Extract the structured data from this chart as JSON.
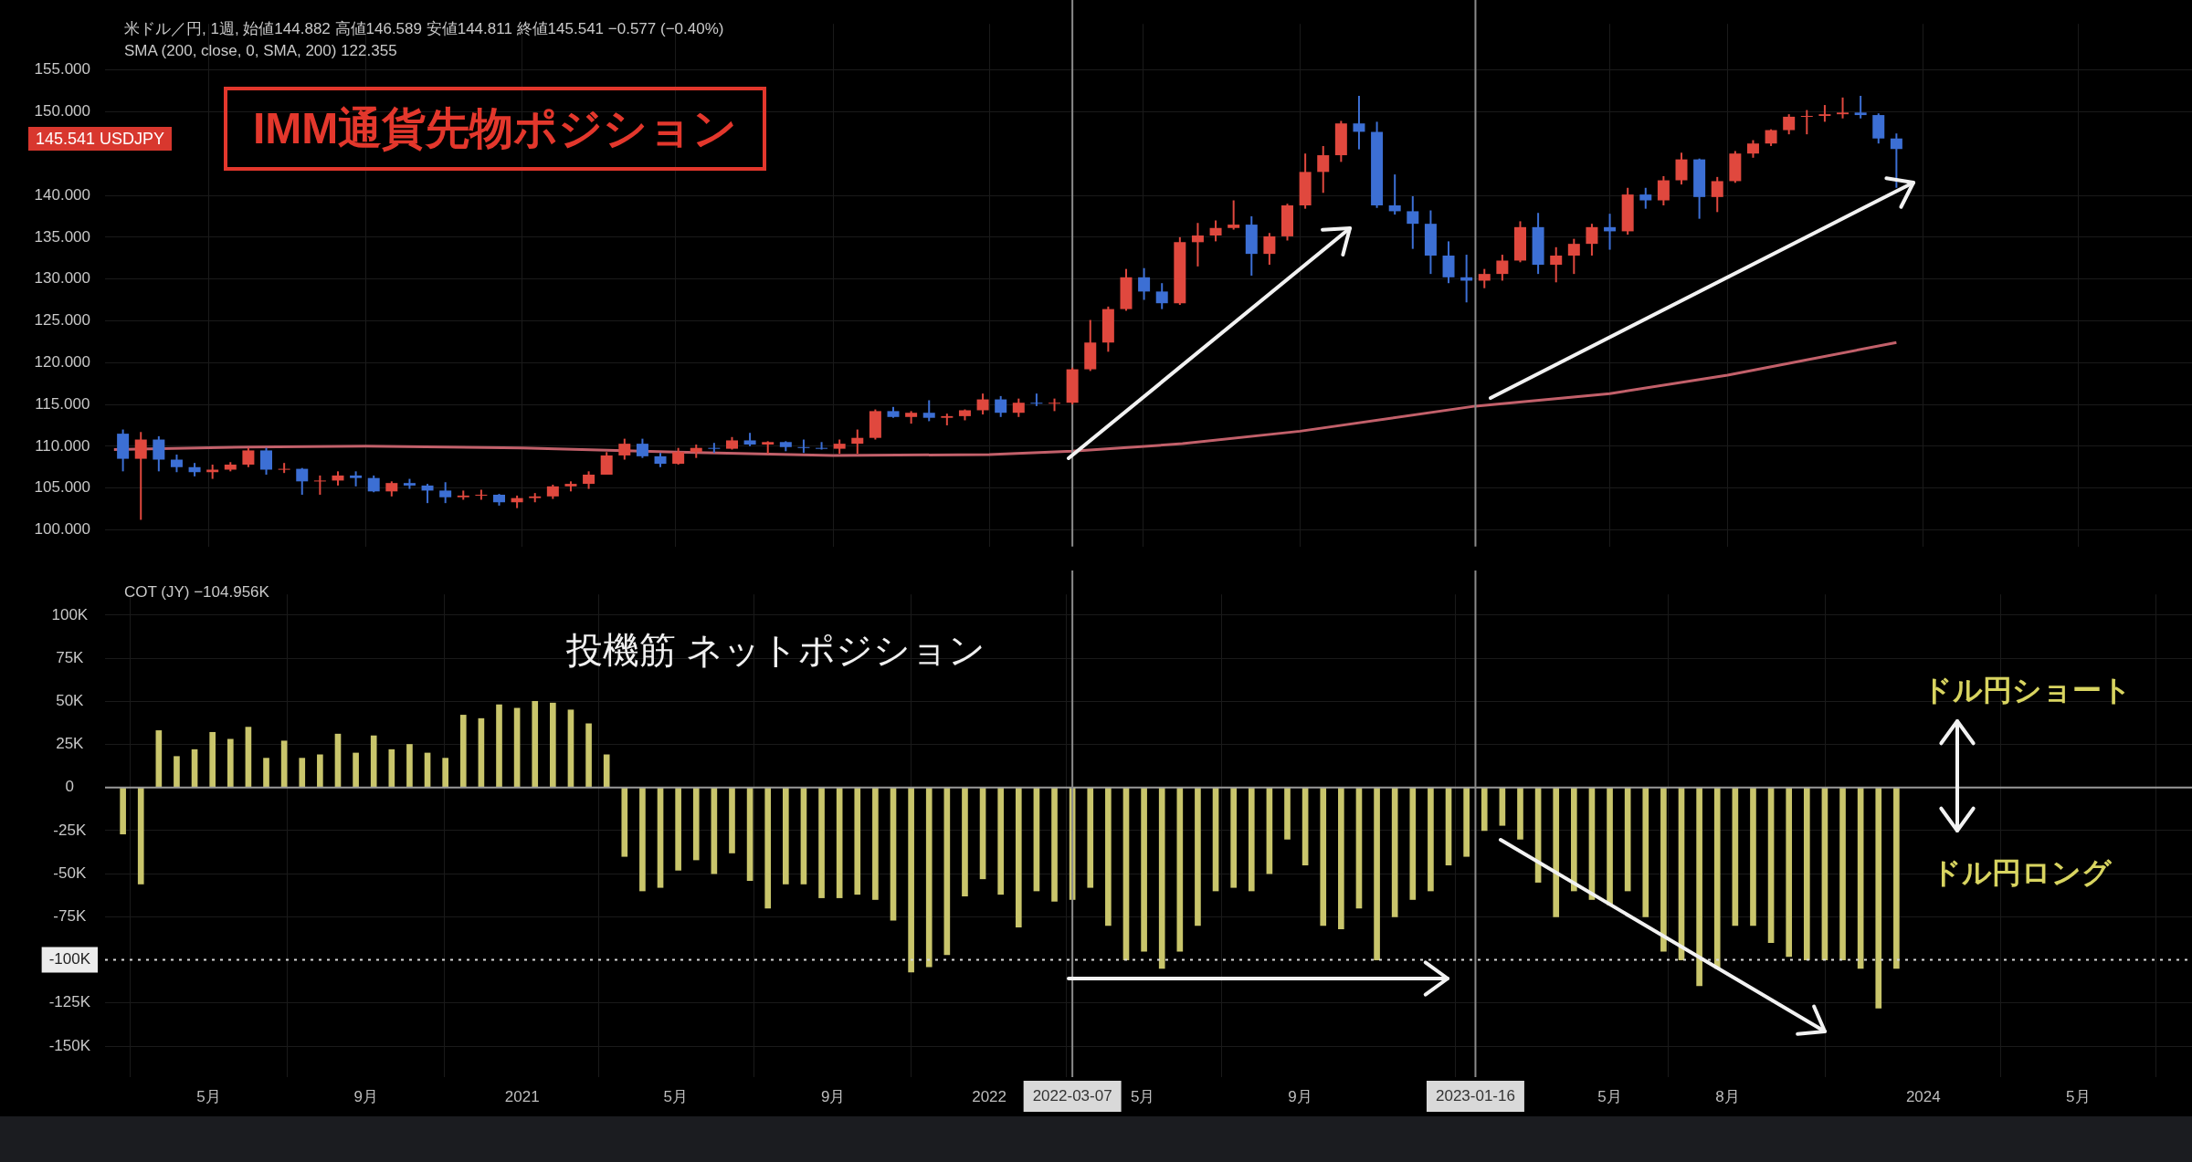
{
  "chart_data": [
    {
      "type": "candlestick",
      "title": "IMM通貨先物ポジション",
      "x": [
        "2020-02-24",
        "2020-03-09",
        "2020-03-23",
        "2020-04-06",
        "2020-04-20",
        "2020-05-04",
        "2020-05-18",
        "2020-06-01",
        "2020-06-15",
        "2020-06-29",
        "2020-07-13",
        "2020-07-27",
        "2020-08-10",
        "2020-08-24",
        "2020-09-07",
        "2020-09-21",
        "2020-10-05",
        "2020-10-19",
        "2020-11-02",
        "2020-11-16",
        "2020-11-30",
        "2020-12-14",
        "2020-12-28",
        "2021-01-11",
        "2021-01-25",
        "2021-02-08",
        "2021-02-22",
        "2021-03-08",
        "2021-03-22",
        "2021-04-05",
        "2021-04-19",
        "2021-05-03",
        "2021-05-17",
        "2021-05-31",
        "2021-06-14",
        "2021-06-28",
        "2021-07-12",
        "2021-07-26",
        "2021-08-09",
        "2021-08-23",
        "2021-09-06",
        "2021-09-20",
        "2021-10-04",
        "2021-10-18",
        "2021-11-01",
        "2021-11-15",
        "2021-11-29",
        "2021-12-13",
        "2021-12-27",
        "2022-01-10",
        "2022-01-24",
        "2022-02-07",
        "2022-02-21",
        "2022-03-07",
        "2022-03-21",
        "2022-04-04",
        "2022-04-18",
        "2022-05-02",
        "2022-05-16",
        "2022-05-30",
        "2022-06-13",
        "2022-06-27",
        "2022-07-11",
        "2022-07-25",
        "2022-08-08",
        "2022-08-22",
        "2022-09-05",
        "2022-09-19",
        "2022-10-03",
        "2022-10-17",
        "2022-10-31",
        "2022-11-14",
        "2022-11-28",
        "2022-12-12",
        "2022-12-26",
        "2023-01-09",
        "2023-01-23",
        "2023-02-06",
        "2023-02-20",
        "2023-03-06",
        "2023-03-20",
        "2023-04-03",
        "2023-04-17",
        "2023-05-01",
        "2023-05-15",
        "2023-05-29",
        "2023-06-12",
        "2023-06-26",
        "2023-07-10",
        "2023-07-24",
        "2023-08-07",
        "2023-08-21",
        "2023-09-04",
        "2023-09-18",
        "2023-10-02",
        "2023-10-16",
        "2023-10-30",
        "2023-11-13",
        "2023-11-27",
        "2023-12-11"
      ],
      "ohlc": [
        [
          111.5,
          112,
          107,
          108.5
        ],
        [
          108.5,
          111.7,
          101.2,
          110.8
        ],
        [
          110.8,
          111.2,
          107,
          108.4
        ],
        [
          108.4,
          109,
          106.9,
          107.5
        ],
        [
          107.5,
          108,
          106.4,
          106.9
        ],
        [
          106.9,
          107.8,
          106.1,
          107.2
        ],
        [
          107.2,
          108.1,
          107,
          107.8
        ],
        [
          107.8,
          109.8,
          107.5,
          109.5
        ],
        [
          109.5,
          109.8,
          106.6,
          107.2
        ],
        [
          107.2,
          108,
          106.8,
          107.3
        ],
        [
          107.3,
          107.4,
          104.2,
          105.8
        ],
        [
          105.8,
          106.5,
          104.2,
          105.9
        ],
        [
          105.9,
          107,
          105.3,
          106.5
        ],
        [
          106.5,
          107,
          105.2,
          106.2
        ],
        [
          106.2,
          106.5,
          104.5,
          104.6
        ],
        [
          104.6,
          105.8,
          104,
          105.6
        ],
        [
          105.6,
          106.1,
          104.9,
          105.3
        ],
        [
          105.3,
          105.5,
          103.2,
          104.7
        ],
        [
          104.7,
          105.7,
          103.2,
          103.9
        ],
        [
          103.9,
          104.7,
          103.6,
          104.1
        ],
        [
          104.1,
          104.8,
          103.6,
          104.2
        ],
        [
          104.2,
          104.3,
          102.9,
          103.3
        ],
        [
          103.3,
          104.1,
          102.6,
          103.8
        ],
        [
          103.8,
          104.4,
          103.3,
          104
        ],
        [
          104,
          105.4,
          103.7,
          105.2
        ],
        [
          105.2,
          105.8,
          104.6,
          105.5
        ],
        [
          105.5,
          107,
          104.9,
          106.6
        ],
        [
          106.6,
          109.3,
          106.6,
          108.9
        ],
        [
          108.9,
          110.9,
          108.4,
          110.3
        ],
        [
          110.3,
          110.9,
          108.6,
          108.8
        ],
        [
          108.8,
          109.2,
          107.5,
          107.9
        ],
        [
          107.9,
          109.8,
          107.8,
          109.3
        ],
        [
          109.3,
          110.2,
          108.6,
          109.8
        ],
        [
          109.8,
          110.4,
          109.2,
          109.7
        ],
        [
          109.7,
          111.1,
          109.6,
          110.7
        ],
        [
          110.7,
          111.6,
          110,
          110.2
        ],
        [
          110.2,
          110.6,
          109.1,
          110.5
        ],
        [
          110.5,
          110.6,
          109.4,
          109.9
        ],
        [
          109.9,
          110.8,
          109.2,
          109.8
        ],
        [
          109.8,
          110.5,
          109.6,
          109.7
        ],
        [
          109.7,
          110.8,
          109.1,
          110.3
        ],
        [
          110.3,
          112,
          109.1,
          111
        ],
        [
          111,
          114.4,
          110.8,
          114.2
        ],
        [
          114.2,
          114.7,
          113.4,
          113.5
        ],
        [
          113.5,
          114.2,
          112.7,
          114
        ],
        [
          114,
          115.5,
          113,
          113.4
        ],
        [
          113.4,
          113.9,
          112.5,
          113.6
        ],
        [
          113.6,
          114.4,
          113.1,
          114.3
        ],
        [
          114.3,
          116.3,
          113.8,
          115.6
        ],
        [
          115.6,
          116,
          113.5,
          114
        ],
        [
          114,
          115.7,
          113.5,
          115.2
        ],
        [
          115.2,
          116.3,
          114.8,
          115.1
        ],
        [
          115.1,
          115.7,
          114.2,
          115.2
        ],
        [
          115.2,
          119.4,
          115,
          119.2
        ],
        [
          119.2,
          125.1,
          119,
          122.4
        ],
        [
          122.4,
          126.7,
          121.3,
          126.4
        ],
        [
          126.4,
          131.2,
          126.2,
          130.2
        ],
        [
          130.2,
          131.3,
          127.5,
          128.5
        ],
        [
          128.5,
          129.5,
          126.4,
          127.1
        ],
        [
          127.1,
          135,
          126.9,
          134.4
        ],
        [
          134.4,
          136.7,
          131.5,
          135.2
        ],
        [
          135.2,
          137,
          134.5,
          136.1
        ],
        [
          136.1,
          139.4,
          135.9,
          136.5
        ],
        [
          136.5,
          137.5,
          130.4,
          133
        ],
        [
          133,
          135.5,
          131.7,
          135.1
        ],
        [
          135.1,
          139,
          134.6,
          138.8
        ],
        [
          138.8,
          145,
          138.4,
          142.8
        ],
        [
          142.8,
          145.9,
          140.3,
          144.8
        ],
        [
          144.8,
          148.9,
          144,
          148.6
        ],
        [
          148.6,
          151.9,
          145.5,
          147.6
        ],
        [
          147.6,
          148.8,
          138.5,
          138.8
        ],
        [
          138.8,
          142.5,
          137.7,
          138.1
        ],
        [
          138.1,
          139.9,
          133.6,
          136.6
        ],
        [
          136.6,
          138.2,
          130.6,
          132.8
        ],
        [
          132.8,
          134.5,
          129.5,
          130.2
        ],
        [
          130.2,
          132.9,
          127.2,
          129.8
        ],
        [
          129.8,
          131.2,
          128.9,
          130.6
        ],
        [
          130.6,
          132.9,
          129.8,
          132.2
        ],
        [
          132.2,
          136.9,
          132,
          136.2
        ],
        [
          136.2,
          137.9,
          130.6,
          131.7
        ],
        [
          131.7,
          133.8,
          129.6,
          132.8
        ],
        [
          132.8,
          134.8,
          130.6,
          134.2
        ],
        [
          134.2,
          136.6,
          132.8,
          136.2
        ],
        [
          136.2,
          137.8,
          133.5,
          135.7
        ],
        [
          135.7,
          140.9,
          135.3,
          140.1
        ],
        [
          140.1,
          140.9,
          138.4,
          139.4
        ],
        [
          139.4,
          142.3,
          138.8,
          141.8
        ],
        [
          141.8,
          145.1,
          141.3,
          144.3
        ],
        [
          144.3,
          144.4,
          137.2,
          139.8
        ],
        [
          139.8,
          142.2,
          138,
          141.7
        ],
        [
          141.7,
          145.3,
          141.5,
          145
        ],
        [
          145,
          146.6,
          144.5,
          146.2
        ],
        [
          146.2,
          147.9,
          145.9,
          147.8
        ],
        [
          147.8,
          149.7,
          147.3,
          149.4
        ],
        [
          149.4,
          150.2,
          147.3,
          149.5
        ],
        [
          149.5,
          150.8,
          148.8,
          149.7
        ],
        [
          149.7,
          151.7,
          149.2,
          149.9
        ],
        [
          149.9,
          151.9,
          149.2,
          149.6
        ],
        [
          149.6,
          149.8,
          146.2,
          146.8
        ],
        [
          146.8,
          147.4,
          140.9,
          145.541
        ]
      ],
      "colors": [
        "#3c6fd4",
        "#e0483e",
        "#3c6fd4",
        "#3c6fd4",
        "#3c6fd4",
        "#e0483e",
        "#e0483e",
        "#e0483e",
        "#3c6fd4",
        "#e0483e",
        "#3c6fd4",
        "#e0483e",
        "#e0483e",
        "#3c6fd4",
        "#3c6fd4",
        "#e0483e",
        "#3c6fd4",
        "#3c6fd4",
        "#3c6fd4",
        "#e0483e",
        "#e0483e",
        "#3c6fd4",
        "#e0483e",
        "#e0483e",
        "#e0483e",
        "#e0483e",
        "#e0483e",
        "#e0483e",
        "#e0483e",
        "#3c6fd4",
        "#3c6fd4",
        "#e0483e",
        "#e0483e",
        "#3c6fd4",
        "#e0483e",
        "#3c6fd4",
        "#e0483e",
        "#3c6fd4",
        "#3c6fd4",
        "#3c6fd4",
        "#e0483e",
        "#e0483e",
        "#e0483e",
        "#3c6fd4",
        "#e0483e",
        "#3c6fd4",
        "#e0483e",
        "#e0483e",
        "#e0483e",
        "#3c6fd4",
        "#e0483e",
        "#3c6fd4",
        "#e0483e",
        "#e0483e",
        "#e0483e",
        "#e0483e",
        "#e0483e",
        "#3c6fd4",
        "#3c6fd4",
        "#e0483e",
        "#e0483e",
        "#e0483e",
        "#e0483e",
        "#3c6fd4",
        "#e0483e",
        "#e0483e",
        "#e0483e",
        "#e0483e",
        "#e0483e",
        "#3c6fd4",
        "#3c6fd4",
        "#3c6fd4",
        "#3c6fd4",
        "#3c6fd4",
        "#3c6fd4",
        "#3c6fd4",
        "#e0483e",
        "#e0483e",
        "#e0483e",
        "#3c6fd4",
        "#e0483e",
        "#e0483e",
        "#e0483e",
        "#3c6fd4",
        "#e0483e",
        "#3c6fd4",
        "#e0483e",
        "#e0483e",
        "#3c6fd4",
        "#e0483e",
        "#e0483e",
        "#e0483e",
        "#e0483e",
        "#e0483e",
        "#e0483e",
        "#e0483e",
        "#e0483e",
        "#3c6fd4",
        "#3c6fd4",
        "#3c6fd4"
      ],
      "series": [
        {
          "type": "line",
          "color": "#c2606a",
          "x": [
            "2020-02-17",
            "2020-06-01",
            "2020-09-01",
            "2021-01-01",
            "2021-05-01",
            "2021-09-01",
            "2022-01-01",
            "2022-03-07",
            "2022-06-01",
            "2022-09-01",
            "2023-01-16",
            "2023-05-01",
            "2023-08-01",
            "2023-10-01",
            "2023-12-11"
          ],
          "values": [
            109.6,
            109.9,
            110,
            109.8,
            109.3,
            108.9,
            109,
            109.4,
            110.3,
            111.8,
            114.8,
            116.3,
            118.5,
            120.3,
            122.4
          ]
        }
      ],
      "xlim": [
        "2020-02-10",
        "2024-07-29"
      ],
      "xticks": [
        {
          "value": "2020-05-01",
          "label": null
        },
        {
          "value": "2020-09-01",
          "label": null
        },
        {
          "value": "2021-01-01",
          "label": null
        },
        {
          "value": "2021-05-01",
          "label": null
        },
        {
          "value": "2021-09-01",
          "label": null
        },
        {
          "value": "2022-01-01",
          "label": null
        },
        {
          "value": "2022-05-01",
          "label": null
        },
        {
          "value": "2022-09-01",
          "label": null
        },
        {
          "value": "2023-05-01",
          "label": null
        },
        {
          "value": "2023-08-01",
          "label": null
        },
        {
          "value": "2024-01-01",
          "label": null
        },
        {
          "value": "2024-05-01",
          "label": null
        }
      ],
      "ylim": [
        98,
        160.5
      ],
      "yticks": [
        {
          "value": 100,
          "label": "100.000"
        },
        {
          "value": 105,
          "label": "105.000"
        },
        {
          "value": 110,
          "label": "110.000"
        },
        {
          "value": 115,
          "label": "115.000"
        },
        {
          "value": 120,
          "label": "120.000"
        },
        {
          "value": 125,
          "label": "125.000"
        },
        {
          "value": 130,
          "label": "130.000"
        },
        {
          "value": 135,
          "label": "135.000"
        },
        {
          "value": 140,
          "label": "140.000"
        },
        {
          "value": 150,
          "label": "150.000"
        },
        {
          "value": 155,
          "label": "155.000"
        }
      ],
      "tick_labels": "y",
      "grid": true,
      "ref_lines": [
        {
          "axis": "x",
          "value": "2022-03-07"
        },
        {
          "axis": "x",
          "value": "2023-01-16"
        }
      ],
      "annotations": [
        "米ドル／円, 1週, 始値144.882 高値146.589 安値144.811 終値145.541 −0.577 (−0.40%)",
        "SMA (200, close, 0, SMA, 200) 122.355",
        "145.541 USDJPY"
      ]
    },
    {
      "type": "bar",
      "title": "投機筋 ネットポジション",
      "color": "#c9c56b",
      "x": [
        "2020-02-24",
        "2020-03-09",
        "2020-03-23",
        "2020-04-06",
        "2020-04-20",
        "2020-05-04",
        "2020-05-18",
        "2020-06-01",
        "2020-06-15",
        "2020-06-29",
        "2020-07-13",
        "2020-07-27",
        "2020-08-10",
        "2020-08-24",
        "2020-09-07",
        "2020-09-21",
        "2020-10-05",
        "2020-10-19",
        "2020-11-02",
        "2020-11-16",
        "2020-11-30",
        "2020-12-14",
        "2020-12-28",
        "2021-01-11",
        "2021-01-25",
        "2021-02-08",
        "2021-02-22",
        "2021-03-08",
        "2021-03-22",
        "2021-04-05",
        "2021-04-19",
        "2021-05-03",
        "2021-05-17",
        "2021-05-31",
        "2021-06-14",
        "2021-06-28",
        "2021-07-12",
        "2021-07-26",
        "2021-08-09",
        "2021-08-23",
        "2021-09-06",
        "2021-09-20",
        "2021-10-04",
        "2021-10-18",
        "2021-11-01",
        "2021-11-15",
        "2021-11-29",
        "2021-12-13",
        "2021-12-27",
        "2022-01-10",
        "2022-01-24",
        "2022-02-07",
        "2022-02-21",
        "2022-03-07",
        "2022-03-21",
        "2022-04-04",
        "2022-04-18",
        "2022-05-02",
        "2022-05-16",
        "2022-05-30",
        "2022-06-13",
        "2022-06-27",
        "2022-07-11",
        "2022-07-25",
        "2022-08-08",
        "2022-08-22",
        "2022-09-05",
        "2022-09-19",
        "2022-10-03",
        "2022-10-17",
        "2022-10-31",
        "2022-11-14",
        "2022-11-28",
        "2022-12-12",
        "2022-12-26",
        "2023-01-09",
        "2023-01-23",
        "2023-02-06",
        "2023-02-20",
        "2023-03-06",
        "2023-03-20",
        "2023-04-03",
        "2023-04-17",
        "2023-05-01",
        "2023-05-15",
        "2023-05-29",
        "2023-06-12",
        "2023-06-26",
        "2023-07-10",
        "2023-07-24",
        "2023-08-07",
        "2023-08-21",
        "2023-09-04",
        "2023-09-18",
        "2023-10-02",
        "2023-10-16",
        "2023-10-30",
        "2023-11-13",
        "2023-11-27",
        "2023-12-11"
      ],
      "values": [
        -27,
        -56,
        33,
        18,
        22,
        32,
        28,
        35,
        17,
        27,
        17,
        19,
        31,
        20,
        30,
        22,
        25,
        20,
        17,
        42,
        40,
        48,
        46,
        50,
        49,
        45,
        37,
        19,
        -40,
        -60,
        -58,
        -48,
        -42,
        -50,
        -38,
        -54,
        -70,
        -56,
        -56,
        -64,
        -64,
        -62,
        -65,
        -77,
        -107,
        -104,
        -97,
        -63,
        -53,
        -62,
        -81,
        -60,
        -66,
        -65,
        -58,
        -80,
        -100,
        -95,
        -105,
        -95,
        -80,
        -60,
        -58,
        -60,
        -50,
        -30,
        -45,
        -80,
        -82,
        -70,
        -100,
        -75,
        -65,
        -60,
        -45,
        -40,
        -25,
        -22,
        -30,
        -55,
        -75,
        -60,
        -65,
        -68,
        -60,
        -75,
        -95,
        -100,
        -115,
        -105,
        -80,
        -80,
        -90,
        -98,
        -100,
        -100,
        -100,
        -105,
        -128,
        -105
      ],
      "xlim": [
        "2020-02-10",
        "2024-07-29"
      ],
      "xticks": [
        {
          "value": "2020-05-01",
          "label": "5月"
        },
        {
          "value": "2020-09-01",
          "label": "9月"
        },
        {
          "value": "2021-01-01",
          "label": "2021"
        },
        {
          "value": "2021-05-01",
          "label": "5月"
        },
        {
          "value": "2021-09-01",
          "label": "9月"
        },
        {
          "value": "2022-01-01",
          "label": "2022"
        },
        {
          "value": "2022-05-01",
          "label": "5月"
        },
        {
          "value": "2022-09-01",
          "label": "9月"
        },
        {
          "value": "2023-05-01",
          "label": "5月"
        },
        {
          "value": "2023-08-01",
          "label": "8月"
        },
        {
          "value": "2024-01-01",
          "label": "2024"
        },
        {
          "value": "2024-05-01",
          "label": "5月"
        }
      ],
      "ylim": [
        -168,
        112
      ],
      "yticks": [
        {
          "value": -150,
          "label": "-150K"
        },
        {
          "value": -125,
          "label": "-125K"
        },
        {
          "value": -75,
          "label": "-75K"
        },
        {
          "value": -50,
          "label": "-50K"
        },
        {
          "value": -25,
          "label": "-25K"
        },
        {
          "value": 0,
          "label": "0"
        },
        {
          "value": 25,
          "label": "25K"
        },
        {
          "value": 50,
          "label": "50K"
        },
        {
          "value": 75,
          "label": "75K"
        },
        {
          "value": 100,
          "label": "100K"
        }
      ],
      "grid": true,
      "ref_lines": [
        {
          "axis": "y",
          "value": 0,
          "color": "#9a9a9a"
        },
        {
          "axis": "y",
          "value": -100,
          "label": "-100K",
          "line_style": "dotted",
          "color": "#d8d8d8"
        },
        {
          "axis": "x",
          "value": "2022-03-07",
          "label": "2022-03-07"
        },
        {
          "axis": "x",
          "value": "2023-01-16",
          "label": "2023-01-16"
        }
      ],
      "annotations": [
        "COT (JY) −104.956K",
        "ドル円ショート",
        "ドル円ロング"
      ]
    }
  ]
}
